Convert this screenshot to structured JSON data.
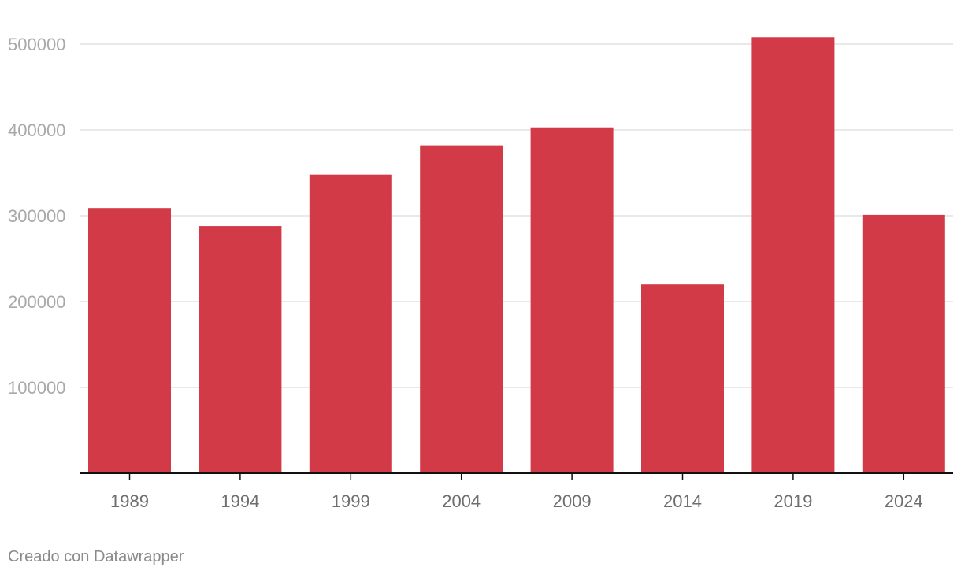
{
  "chart_data": {
    "type": "bar",
    "categories": [
      "1989",
      "1994",
      "1999",
      "2004",
      "2009",
      "2014",
      "2019",
      "2024"
    ],
    "values": [
      309000,
      288000,
      348000,
      382000,
      403000,
      220000,
      508000,
      301000
    ],
    "yticks": [
      100000,
      200000,
      300000,
      400000,
      500000
    ],
    "ytick_labels": [
      "100000",
      "200000",
      "300000",
      "400000",
      "500000"
    ],
    "ylim": [
      0,
      520000
    ],
    "grid": true,
    "legend": "none",
    "bar_color": "#d13a46"
  },
  "footer": {
    "credit": "Creado con Datawrapper"
  }
}
